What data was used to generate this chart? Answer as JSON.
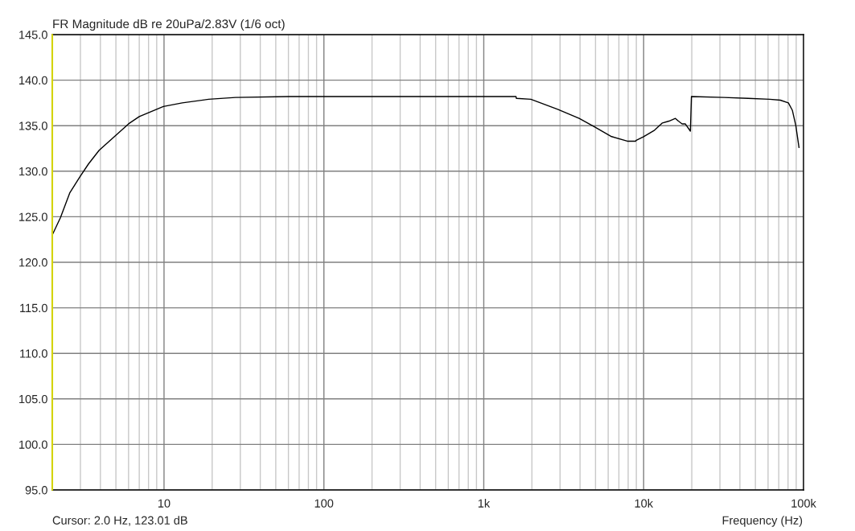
{
  "chart_data": {
    "type": "line",
    "title": "FR Magnitude dB re 20uPa/2.83V (1/6 oct)",
    "xlabel": "Frequency (Hz)",
    "annotations": [
      "Cursor: 2.0 Hz, 123.01 dB"
    ],
    "log": "x",
    "grid": true,
    "marker": "none",
    "line_style": "solid",
    "xlim": [
      2,
      100000
    ],
    "xticks": [
      10,
      100,
      {
        "value": 1000,
        "label": "1k"
      },
      {
        "value": 10000,
        "label": "10k"
      },
      {
        "value": 100000,
        "label": "100k"
      }
    ],
    "ylim": [
      95,
      145
    ],
    "yticks": [
      {
        "value": 95,
        "label": "95.0"
      },
      {
        "value": 100,
        "label": "100.0"
      },
      {
        "value": 105,
        "label": "105.0"
      },
      {
        "value": 110,
        "label": "110.0"
      },
      {
        "value": 115,
        "label": "115.0"
      },
      {
        "value": 120,
        "label": "120.0"
      },
      {
        "value": 125,
        "label": "125.0"
      },
      {
        "value": 130,
        "label": "130.0"
      },
      {
        "value": 135,
        "label": "135.0"
      },
      {
        "value": 140,
        "label": "140.0"
      },
      {
        "value": 145,
        "label": "145.0"
      }
    ],
    "ref_lines": [
      {
        "axis": "x",
        "value": 2,
        "color": "#d4d400"
      }
    ],
    "series": [
      {
        "color": "#000000",
        "x": [
          2.0,
          2.25,
          2.57,
          2.98,
          3.37,
          3.93,
          4.96,
          6.0,
          7.0,
          9.9,
          13,
          19,
          28,
          61,
          200,
          1000,
          1590,
          1600,
          1970,
          2900,
          3950,
          5000,
          6300,
          7900,
          8900,
          9000,
          10000,
          11700,
          13100,
          14400,
          15800,
          16500,
          17400,
          18200,
          19600,
          19900,
          31800,
          45000,
          61400,
          71600,
          80400,
          85100,
          89500,
          93700
        ],
        "values": [
          123.0,
          124.9,
          127.6,
          129.4,
          130.8,
          132.3,
          133.9,
          135.2,
          136.0,
          137.1,
          137.5,
          137.9,
          138.1,
          138.2,
          138.2,
          138.2,
          138.2,
          138.0,
          137.9,
          136.8,
          135.8,
          134.8,
          133.8,
          133.3,
          133.3,
          133.4,
          133.8,
          134.5,
          135.3,
          135.5,
          135.8,
          135.5,
          135.2,
          135.2,
          134.4,
          138.2,
          138.1,
          138.0,
          137.9,
          137.8,
          137.5,
          136.7,
          135.0,
          132.6
        ]
      }
    ]
  }
}
